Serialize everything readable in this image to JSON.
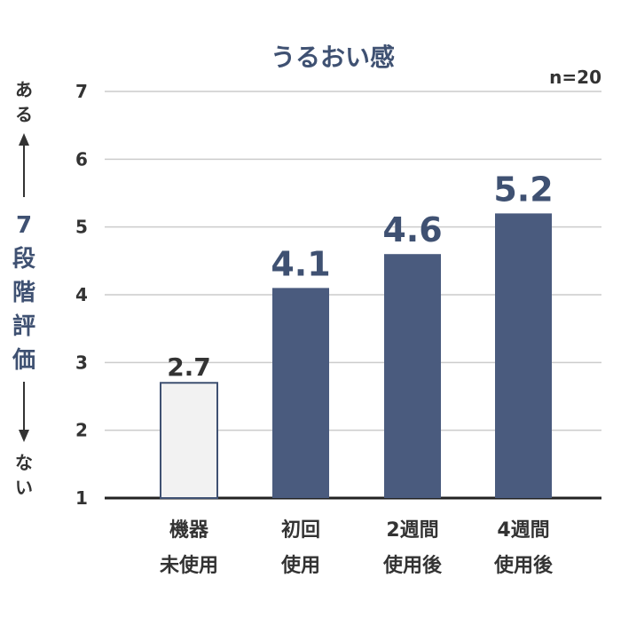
{
  "chart_data": {
    "type": "bar",
    "title": "うるおい感",
    "sample_note": "n=20",
    "ylabel": "7段階評価",
    "ylabel_top": "ある",
    "ylabel_bottom": "ない",
    "ylim": [
      1,
      7
    ],
    "yticks": [
      "1",
      "2",
      "3",
      "4",
      "5",
      "6",
      "7"
    ],
    "grid": true,
    "categories": [
      [
        "機器",
        "未使用"
      ],
      [
        "初回",
        "使用"
      ],
      [
        "2週間",
        "使用後"
      ],
      [
        "4週間",
        "使用後"
      ]
    ],
    "values": [
      2.7,
      4.1,
      4.6,
      5.2
    ],
    "value_labels": [
      "2.7",
      "4.1",
      "4.6",
      "5.2"
    ],
    "colors": {
      "baseline_bar": "#f2f2f2",
      "baseline_border": "#3f5172",
      "treated_bar": "#4a5b7e",
      "grid": "#cccccc",
      "axis": "#222222"
    }
  }
}
